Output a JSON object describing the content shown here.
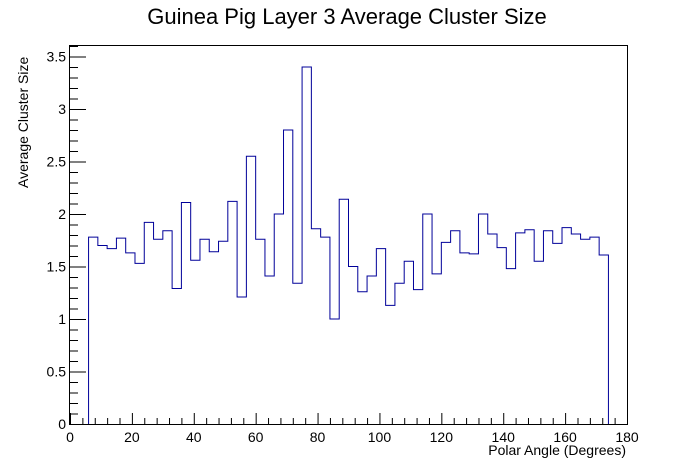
{
  "chart_data": {
    "type": "histogram",
    "title": "Guinea Pig Layer 3 Average Cluster Size",
    "xlabel": "Polar Angle (Degrees)",
    "ylabel": "Average Cluster Size",
    "xlim": [
      0,
      180
    ],
    "ylim": [
      0,
      3.6
    ],
    "x_ticks": [
      0,
      20,
      40,
      60,
      80,
      100,
      120,
      140,
      160,
      180
    ],
    "y_ticks": [
      0,
      0.5,
      1,
      1.5,
      2,
      2.5,
      3,
      3.5
    ],
    "x_tick_labels": [
      "0",
      "20",
      "40",
      "60",
      "80",
      "100",
      "120",
      "140",
      "160",
      "180"
    ],
    "y_tick_labels": [
      "0",
      "0.5",
      "1",
      "1.5",
      "2",
      "2.5",
      "3",
      "3.5"
    ],
    "grid": false,
    "line_color": "#000099",
    "bin_edges": [
      6,
      9,
      12,
      15,
      18,
      21,
      24,
      27,
      30,
      33,
      36,
      39,
      42,
      45,
      48,
      51,
      54,
      57,
      60,
      63,
      66,
      69,
      72,
      75,
      78,
      81,
      84,
      87,
      90,
      93,
      96,
      99,
      102,
      105,
      108,
      111,
      114,
      117,
      120,
      123,
      126,
      129,
      132,
      135,
      138,
      141,
      144,
      147,
      150,
      153,
      156,
      159,
      162,
      165,
      168,
      171,
      174
    ],
    "values": [
      1.78,
      1.7,
      1.67,
      1.77,
      1.63,
      1.53,
      1.92,
      1.76,
      1.84,
      1.29,
      2.11,
      1.56,
      1.76,
      1.64,
      1.74,
      2.12,
      1.21,
      2.55,
      1.76,
      1.41,
      2.0,
      2.8,
      1.34,
      3.4,
      1.86,
      1.78,
      1.0,
      2.14,
      1.5,
      1.26,
      1.41,
      1.67,
      1.13,
      1.34,
      1.55,
      1.28,
      2.0,
      1.43,
      1.73,
      1.84,
      1.63,
      1.62,
      2.0,
      1.81,
      1.68,
      1.48,
      1.82,
      1.85,
      1.55,
      1.84,
      1.72,
      1.87,
      1.81,
      1.76,
      1.78,
      1.61
    ]
  }
}
